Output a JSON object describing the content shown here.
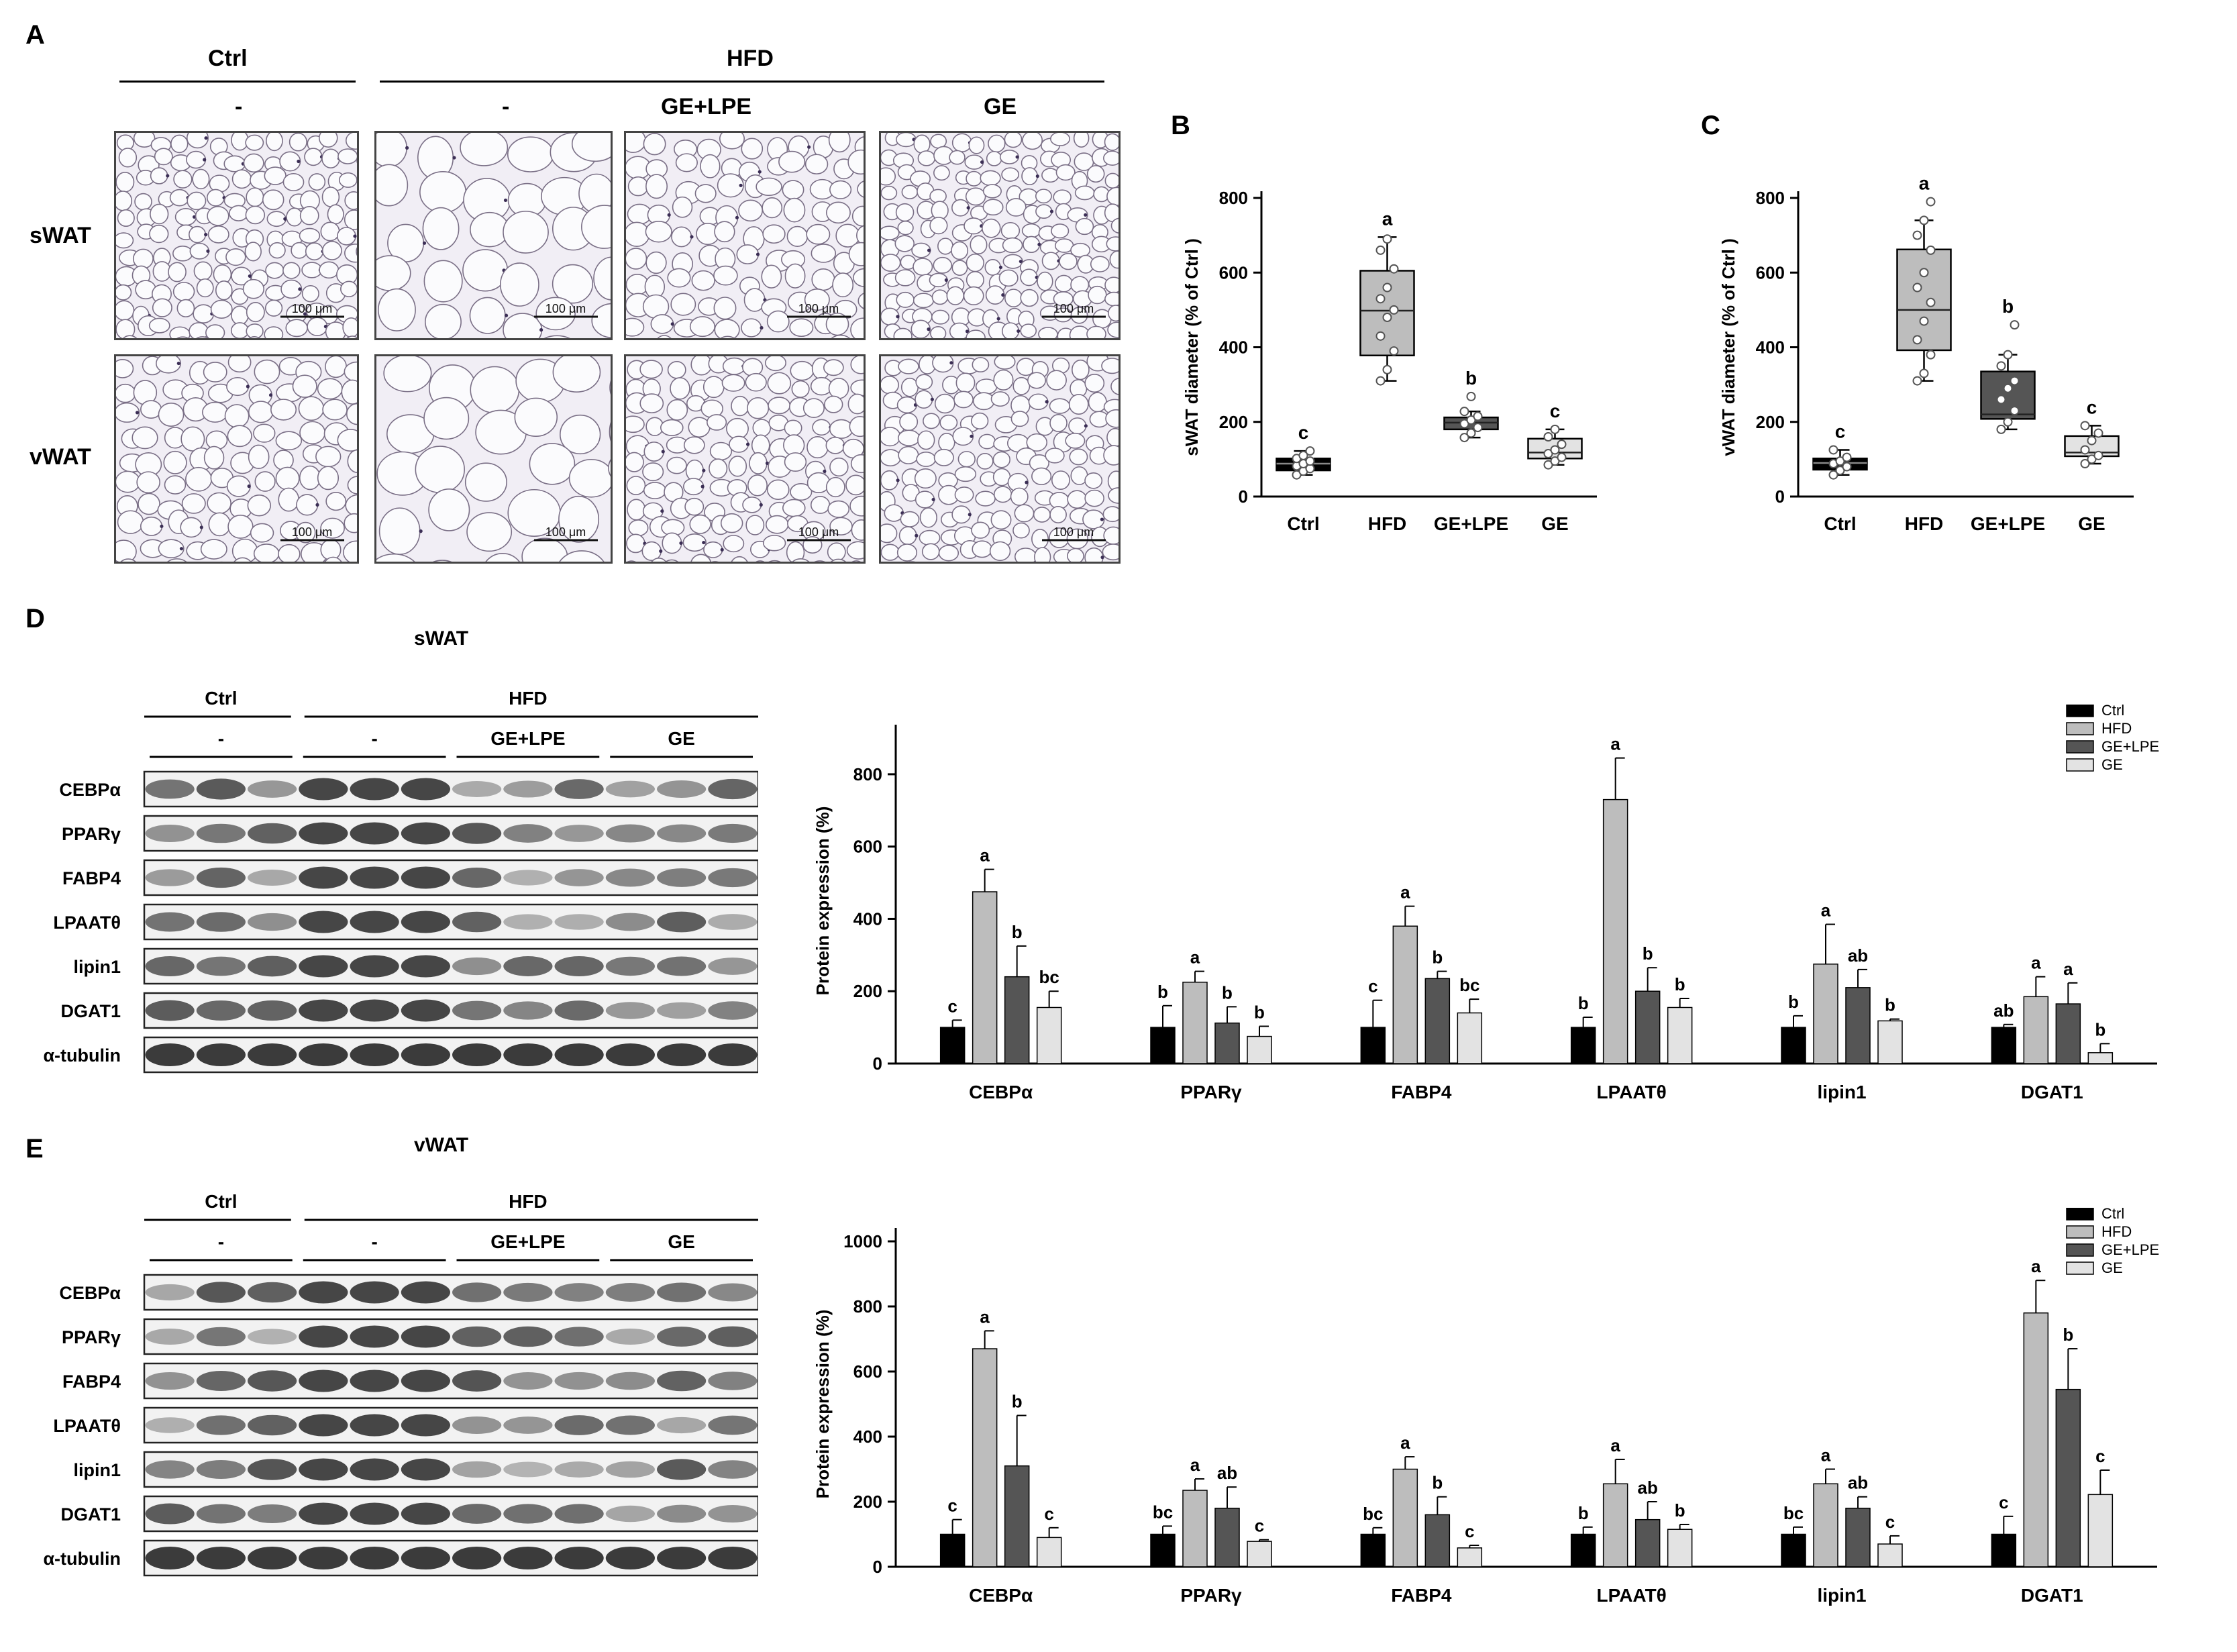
{
  "panels": {
    "A": "A",
    "B": "B",
    "C": "C",
    "D": "D",
    "E": "E"
  },
  "histology": {
    "groups": [
      "Ctrl",
      "HFD"
    ],
    "subgroups": [
      "-",
      "-",
      "GE+LPE",
      "GE"
    ],
    "rows": [
      "sWAT",
      "vWAT"
    ],
    "scale_bar": "100 μm"
  },
  "blots": {
    "D": {
      "title": "sWAT",
      "groups": [
        "Ctrl",
        "HFD"
      ],
      "subgroups": [
        "-",
        "-",
        "GE+LPE",
        "GE"
      ],
      "proteins": [
        "CEBPα",
        "PPARγ",
        "FABP4",
        "LPAATθ",
        "lipin1",
        "DGAT1",
        "α-tubulin"
      ]
    },
    "E": {
      "title": "vWAT",
      "groups": [
        "Ctrl",
        "HFD"
      ],
      "subgroups": [
        "-",
        "-",
        "GE+LPE",
        "GE"
      ],
      "proteins": [
        "CEBPα",
        "PPARγ",
        "FABP4",
        "LPAATθ",
        "lipin1",
        "DGAT1",
        "α-tubulin"
      ]
    }
  },
  "colors": {
    "Ctrl": "#000000",
    "HFD": "#bdbdbd",
    "GE+LPE": "#555555",
    "GE": "#e3e3e3"
  },
  "chart_data": [
    {
      "panel": "B",
      "type": "box",
      "ylabel": "sWAT diameter (% of Ctrl )",
      "ylim": [
        0,
        800
      ],
      "yticks": [
        0,
        200,
        400,
        600,
        800
      ],
      "categories": [
        "Ctrl",
        "HFD",
        "GE+LPE",
        "GE"
      ],
      "boxes": [
        {
          "q1": 70,
          "median": 88,
          "q3": 102,
          "whisker_low": 58,
          "whisker_high": 122,
          "letter": "c",
          "points": [
            58,
            68,
            75,
            82,
            88,
            95,
            102,
            110,
            122
          ]
        },
        {
          "q1": 378,
          "median": 498,
          "q3": 605,
          "whisker_low": 310,
          "whisker_high": 695,
          "letter": "a",
          "points": [
            310,
            340,
            390,
            430,
            480,
            500,
            530,
            560,
            610,
            660,
            690
          ]
        },
        {
          "q1": 180,
          "median": 198,
          "q3": 212,
          "whisker_low": 158,
          "whisker_high": 228,
          "letter": "b",
          "points": [
            158,
            170,
            185,
            195,
            205,
            215,
            228,
            268
          ]
        },
        {
          "q1": 102,
          "median": 118,
          "q3": 155,
          "whisker_low": 85,
          "whisker_high": 180,
          "letter": "c",
          "points": [
            85,
            95,
            105,
            115,
            125,
            140,
            160,
            180
          ]
        }
      ]
    },
    {
      "panel": "C",
      "type": "box",
      "ylabel": "vWAT diameter (% of Ctrl )",
      "ylim": [
        0,
        800
      ],
      "yticks": [
        0,
        200,
        400,
        600,
        800
      ],
      "categories": [
        "Ctrl",
        "HFD",
        "GE+LPE",
        "GE"
      ],
      "boxes": [
        {
          "q1": 72,
          "median": 90,
          "q3": 102,
          "whisker_low": 58,
          "whisker_high": 125,
          "letter": "c",
          "points": [
            58,
            70,
            80,
            88,
            95,
            105,
            125
          ]
        },
        {
          "q1": 392,
          "median": 500,
          "q3": 662,
          "whisker_low": 310,
          "whisker_high": 740,
          "letter": "a",
          "points": [
            310,
            330,
            380,
            420,
            470,
            520,
            560,
            600,
            660,
            700,
            740,
            790
          ]
        },
        {
          "q1": 208,
          "median": 220,
          "q3": 335,
          "whisker_low": 180,
          "whisker_high": 380,
          "letter": "b",
          "points": [
            180,
            200,
            230,
            260,
            290,
            310,
            350,
            380,
            460
          ]
        },
        {
          "q1": 108,
          "median": 118,
          "q3": 162,
          "whisker_low": 88,
          "whisker_high": 190,
          "letter": "c",
          "points": [
            88,
            100,
            110,
            125,
            150,
            170,
            190
          ]
        }
      ]
    },
    {
      "panel": "D",
      "type": "bar",
      "ylabel": "Protein expression (%)",
      "ylim": [
        0,
        900
      ],
      "yticks": [
        0,
        200,
        400,
        600,
        800
      ],
      "categories": [
        "CEBPα",
        "PPARγ",
        "FABP4",
        "LPAATθ",
        "lipin1",
        "DGAT1"
      ],
      "series": [
        {
          "name": "Ctrl",
          "values": [
            100,
            100,
            100,
            100,
            100,
            100
          ],
          "errors": [
            20,
            60,
            75,
            28,
            32,
            8
          ],
          "letters": [
            "c",
            "b",
            "c",
            "b",
            "b",
            "ab"
          ]
        },
        {
          "name": "HFD",
          "values": [
            475,
            225,
            380,
            730,
            275,
            185
          ],
          "errors": [
            62,
            30,
            55,
            115,
            110,
            55
          ],
          "letters": [
            "a",
            "a",
            "a",
            "a",
            "a",
            "a"
          ]
        },
        {
          "name": "GE+LPE",
          "values": [
            240,
            112,
            235,
            200,
            210,
            165
          ],
          "errors": [
            85,
            45,
            20,
            65,
            50,
            58
          ],
          "letters": [
            "b",
            "b",
            "b",
            "b",
            "ab",
            "a"
          ]
        },
        {
          "name": "GE",
          "values": [
            155,
            75,
            140,
            155,
            118,
            30
          ],
          "errors": [
            45,
            28,
            38,
            25,
            5,
            25
          ],
          "letters": [
            "bc",
            "b",
            "bc",
            "b",
            "b",
            "b"
          ]
        }
      ]
    },
    {
      "panel": "E",
      "type": "bar",
      "ylabel": "Protein expression (%)",
      "ylim": [
        0,
        1000
      ],
      "yticks": [
        0,
        200,
        400,
        600,
        800,
        1000
      ],
      "categories": [
        "CEBPα",
        "PPARγ",
        "FABP4",
        "LPAATθ",
        "lipin1",
        "DGAT1"
      ],
      "series": [
        {
          "name": "Ctrl",
          "values": [
            100,
            100,
            100,
            100,
            100,
            100
          ],
          "errors": [
            45,
            25,
            20,
            22,
            22,
            55
          ],
          "letters": [
            "c",
            "bc",
            "bc",
            "b",
            "bc",
            "c"
          ]
        },
        {
          "name": "HFD",
          "values": [
            670,
            235,
            300,
            255,
            255,
            780
          ],
          "errors": [
            55,
            35,
            38,
            75,
            45,
            100
          ],
          "letters": [
            "a",
            "a",
            "a",
            "a",
            "a",
            "a"
          ]
        },
        {
          "name": "GE+LPE",
          "values": [
            310,
            180,
            160,
            145,
            180,
            545
          ],
          "errors": [
            155,
            65,
            55,
            55,
            35,
            125
          ],
          "letters": [
            "b",
            "ab",
            "b",
            "ab",
            "ab",
            "b"
          ]
        },
        {
          "name": "GE",
          "values": [
            90,
            78,
            58,
            115,
            70,
            222
          ],
          "errors": [
            30,
            5,
            8,
            15,
            25,
            75
          ],
          "letters": [
            "c",
            "c",
            "c",
            "b",
            "c",
            "c"
          ]
        }
      ]
    }
  ]
}
